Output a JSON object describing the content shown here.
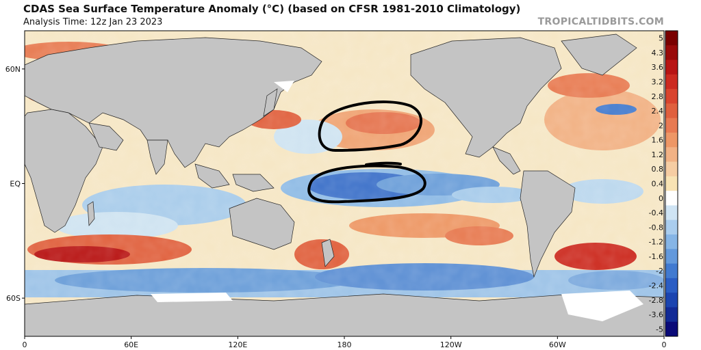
{
  "header": {
    "title": "CDAS Sea Surface Temperature Anomaly (°C) (based on CFSR 1981-2010 Climatology)",
    "subtitle": "Analysis Time: 12z Jan 23 2023",
    "credit": "TROPICALTIDBITS.COM"
  },
  "map": {
    "projection": "equirectangular",
    "lon_range": [
      0,
      360
    ],
    "lat_range": [
      -80,
      80
    ],
    "x_ticks": [
      {
        "lon": 0,
        "label": "0"
      },
      {
        "lon": 60,
        "label": "60E"
      },
      {
        "lon": 120,
        "label": "120E"
      },
      {
        "lon": 180,
        "label": "180"
      },
      {
        "lon": 240,
        "label": "120W"
      },
      {
        "lon": 300,
        "label": "60W"
      },
      {
        "lon": 360,
        "label": "0"
      }
    ],
    "y_ticks": [
      {
        "lat": 60,
        "label": "60N"
      },
      {
        "lat": 0,
        "label": "EQ"
      },
      {
        "lat": -60,
        "label": "60S"
      }
    ],
    "land_color": "#c4c4c4",
    "ice_color": "#ffffff"
  },
  "colorbar": {
    "labels": [
      "5",
      "4.3",
      "3.6",
      "3.2",
      "2.8",
      "2.4",
      "2",
      "1.6",
      "1.2",
      "0.8",
      "0.4",
      "0",
      "-0.4",
      "-0.8",
      "-1.2",
      "-1.6",
      "-2",
      "-2.4",
      "-2.8",
      "-3.6",
      "-5"
    ],
    "colors": [
      "#7a0000",
      "#990a0a",
      "#b81414",
      "#cc2a20",
      "#d9442e",
      "#e0603e",
      "#e87a52",
      "#ee9766",
      "#f2b285",
      "#f6cda3",
      "#f8e3b4",
      "#ffffff",
      "#cfe4f4",
      "#aacdee",
      "#86b5e6",
      "#6399dc",
      "#417ad0",
      "#2a5dc4",
      "#1b44b0",
      "#122a96",
      "#0a0a78"
    ]
  },
  "annotations": [
    {
      "type": "hand-drawn-oval",
      "region": "North Pacific warm anomaly"
    },
    {
      "type": "hand-drawn-oval",
      "region": "Equatorial Pacific cold anomaly (La Niña)"
    }
  ]
}
